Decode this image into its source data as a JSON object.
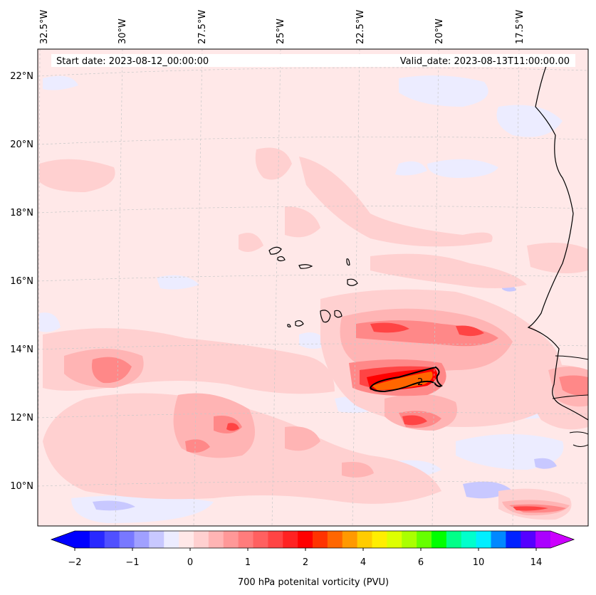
{
  "header": {
    "start_date": "Start date: 2023-08-12_00:00:00",
    "valid_date": "Valid_date: 2023-08-13T11:00:00.00"
  },
  "map": {
    "lon_labels": [
      "32.5°W",
      "30°W",
      "27.5°W",
      "25°W",
      "22.5°W",
      "20°W",
      "17.5°W"
    ],
    "lat_labels": [
      "22°N",
      "20°N",
      "18°N",
      "16°N",
      "14°N",
      "12°N",
      "10°N"
    ],
    "contour_label": "2"
  },
  "colorbar": {
    "ticks": [
      "−2",
      "−1",
      "0",
      "1",
      "2",
      "4",
      "6",
      "10",
      "14"
    ],
    "label": "700 hPa potenital vorticity (PVU)",
    "colors": [
      "#0000ff",
      "#2828ff",
      "#5050ff",
      "#7878ff",
      "#a0a0ff",
      "#c8c8ff",
      "#ececff",
      "#ffe8e8",
      "#ffd0d0",
      "#ffb4b4",
      "#ff9898",
      "#ff7c7c",
      "#ff6060",
      "#ff4444",
      "#ff2222",
      "#ff0000",
      "#ff3300",
      "#ff6600",
      "#ff9900",
      "#ffcc00",
      "#ffee00",
      "#ddff00",
      "#aaff00",
      "#66ff00",
      "#00ff00",
      "#00ff88",
      "#00ffcc",
      "#00eeff",
      "#0088ff",
      "#0022ff",
      "#5500ff",
      "#aa00ff"
    ],
    "under_color": "#0000ff",
    "over_color": "#cc00ff"
  }
}
